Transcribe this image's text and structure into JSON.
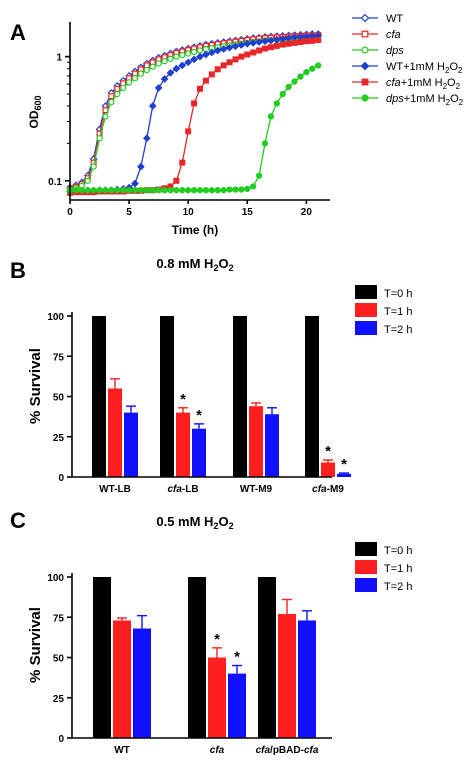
{
  "panels": {
    "A": "A",
    "B": "B",
    "C": "C"
  },
  "chart_data": [
    {
      "type": "line",
      "panel": "A",
      "xlabel": "Time (h)",
      "ylabel": "OD600",
      "ylabel_main": "OD",
      "ylabel_sub": "600",
      "xlim": [
        0,
        22
      ],
      "ylim": [
        0.07,
        1.9
      ],
      "yscale": "log",
      "x_ticks": [
        0,
        5,
        10,
        15,
        20
      ],
      "y_ticks": [
        {
          "value": 0.1,
          "label": "0.1"
        },
        {
          "value": 1,
          "label": "1"
        }
      ],
      "legend_position": "right",
      "series": [
        {
          "name": "WT",
          "name_parts": {
            "pre": "WT",
            "ital": "",
            "post": ""
          },
          "color": "#1f3fd0",
          "marker": "diamond-open",
          "x": [
            0,
            0.5,
            1,
            1.5,
            2,
            2.5,
            3,
            3.5,
            4,
            4.5,
            5,
            5.5,
            6,
            6.5,
            7,
            7.5,
            8,
            8.5,
            9,
            9.5,
            10,
            10.5,
            11,
            11.5,
            12,
            12.5,
            13,
            13.5,
            14,
            14.5,
            15,
            15.5,
            16,
            16.5,
            17,
            17.5,
            18,
            18.5,
            19,
            19.5,
            20,
            20.5,
            21
          ],
          "y": [
            0.088,
            0.092,
            0.097,
            0.11,
            0.15,
            0.26,
            0.4,
            0.51,
            0.58,
            0.64,
            0.7,
            0.76,
            0.82,
            0.88,
            0.93,
            0.98,
            1.02,
            1.06,
            1.1,
            1.13,
            1.16,
            1.19,
            1.22,
            1.25,
            1.27,
            1.29,
            1.31,
            1.33,
            1.35,
            1.37,
            1.39,
            1.41,
            1.42,
            1.44,
            1.45,
            1.46,
            1.47,
            1.48,
            1.49,
            1.5,
            1.51,
            1.52,
            1.52
          ]
        },
        {
          "name": "cfa",
          "name_parts": {
            "pre": "",
            "ital": "cfa",
            "post": ""
          },
          "color": "#e8262a",
          "marker": "square-open",
          "x": [
            0,
            0.5,
            1,
            1.5,
            2,
            2.5,
            3,
            3.5,
            4,
            4.5,
            5,
            5.5,
            6,
            6.5,
            7,
            7.5,
            8,
            8.5,
            9,
            9.5,
            10,
            10.5,
            11,
            11.5,
            12,
            12.5,
            13,
            13.5,
            14,
            14.5,
            15,
            15.5,
            16,
            16.5,
            17,
            17.5,
            18,
            18.5,
            19,
            19.5,
            20,
            20.5,
            21
          ],
          "y": [
            0.086,
            0.089,
            0.094,
            0.105,
            0.14,
            0.24,
            0.37,
            0.48,
            0.55,
            0.61,
            0.67,
            0.73,
            0.79,
            0.85,
            0.9,
            0.95,
            0.99,
            1.03,
            1.07,
            1.1,
            1.13,
            1.16,
            1.19,
            1.22,
            1.24,
            1.26,
            1.28,
            1.3,
            1.32,
            1.34,
            1.36,
            1.38,
            1.4,
            1.41,
            1.42,
            1.43,
            1.44,
            1.45,
            1.46,
            1.47,
            1.48,
            1.48,
            1.49
          ]
        },
        {
          "name": "dps",
          "name_parts": {
            "pre": "",
            "ital": "dps",
            "post": ""
          },
          "color": "#22cc22",
          "marker": "circle-open",
          "x": [
            0,
            0.5,
            1,
            1.5,
            2,
            2.5,
            3,
            3.5,
            4,
            4.5,
            5,
            5.5,
            6,
            6.5,
            7,
            7.5,
            8,
            8.5,
            9,
            9.5,
            10,
            10.5,
            11,
            11.5,
            12,
            12.5,
            13,
            13.5,
            14,
            14.5,
            15,
            15.5,
            16,
            16.5,
            17,
            17.5,
            18,
            18.5,
            19,
            19.5,
            20,
            20.5,
            21
          ],
          "y": [
            0.085,
            0.087,
            0.091,
            0.1,
            0.13,
            0.22,
            0.33,
            0.43,
            0.5,
            0.56,
            0.62,
            0.67,
            0.73,
            0.78,
            0.83,
            0.88,
            0.92,
            0.96,
            1.0,
            1.03,
            1.06,
            1.09,
            1.12,
            1.15,
            1.17,
            1.19,
            1.21,
            1.23,
            1.25,
            1.27,
            1.29,
            1.31,
            1.32,
            1.34,
            1.35,
            1.36,
            1.37,
            1.38,
            1.39,
            1.4,
            1.41,
            1.41,
            1.42
          ]
        },
        {
          "name": "WT+1mM H2O2",
          "name_parts": {
            "pre": "WT",
            "ital": "",
            "post": "+1mM H"
          },
          "color": "#1f3fd0",
          "marker": "diamond",
          "x": [
            0,
            0.5,
            1,
            1.5,
            2,
            2.5,
            3,
            3.5,
            4,
            4.5,
            5,
            5.5,
            6,
            6.5,
            7,
            7.5,
            8,
            8.5,
            9,
            9.5,
            10,
            10.5,
            11,
            11.5,
            12,
            12.5,
            13,
            13.5,
            14,
            14.5,
            15,
            15.5,
            16,
            16.5,
            17,
            17.5,
            18,
            18.5,
            19,
            19.5,
            20,
            20.5,
            21
          ],
          "y": [
            0.082,
            0.083,
            0.083,
            0.083,
            0.083,
            0.084,
            0.084,
            0.084,
            0.085,
            0.086,
            0.088,
            0.095,
            0.13,
            0.22,
            0.4,
            0.56,
            0.66,
            0.74,
            0.8,
            0.85,
            0.9,
            0.95,
            1.0,
            1.04,
            1.08,
            1.12,
            1.15,
            1.18,
            1.21,
            1.24,
            1.27,
            1.29,
            1.31,
            1.33,
            1.35,
            1.37,
            1.39,
            1.41,
            1.43,
            1.44,
            1.45,
            1.46,
            1.47
          ]
        },
        {
          "name": "cfa+1mM H2O2",
          "name_parts": {
            "pre": "",
            "ital": "cfa",
            "post": "+1mM H"
          },
          "color": "#e8262a",
          "marker": "square",
          "x": [
            0,
            0.5,
            1,
            1.5,
            2,
            2.5,
            3,
            3.5,
            4,
            4.5,
            5,
            5.5,
            6,
            6.5,
            7,
            7.5,
            8,
            8.5,
            9,
            9.5,
            10,
            10.5,
            11,
            11.5,
            12,
            12.5,
            13,
            13.5,
            14,
            14.5,
            15,
            15.5,
            16,
            16.5,
            17,
            17.5,
            18,
            18.5,
            19,
            19.5,
            20,
            20.5,
            21
          ],
          "y": [
            0.08,
            0.081,
            0.081,
            0.081,
            0.081,
            0.082,
            0.082,
            0.082,
            0.082,
            0.082,
            0.083,
            0.083,
            0.083,
            0.084,
            0.084,
            0.085,
            0.087,
            0.09,
            0.1,
            0.14,
            0.25,
            0.42,
            0.55,
            0.64,
            0.72,
            0.79,
            0.85,
            0.9,
            0.95,
            1.0,
            1.04,
            1.08,
            1.12,
            1.16,
            1.19,
            1.22,
            1.25,
            1.27,
            1.29,
            1.31,
            1.33,
            1.34,
            1.36
          ]
        },
        {
          "name": "dps+1mM H2O2",
          "name_parts": {
            "pre": "",
            "ital": "dps",
            "post": "+1mM H"
          },
          "color": "#22cc22",
          "marker": "circle",
          "x": [
            0,
            0.5,
            1,
            1.5,
            2,
            2.5,
            3,
            3.5,
            4,
            4.5,
            5,
            5.5,
            6,
            6.5,
            7,
            7.5,
            8,
            8.5,
            9,
            9.5,
            10,
            10.5,
            11,
            11.5,
            12,
            12.5,
            13,
            13.5,
            14,
            14.5,
            15,
            15.5,
            16,
            16.5,
            17,
            17.5,
            18,
            18.5,
            19,
            19.5,
            20,
            20.5,
            21
          ],
          "y": [
            0.083,
            0.084,
            0.084,
            0.084,
            0.084,
            0.084,
            0.084,
            0.084,
            0.084,
            0.084,
            0.084,
            0.084,
            0.084,
            0.084,
            0.084,
            0.084,
            0.084,
            0.084,
            0.084,
            0.084,
            0.084,
            0.084,
            0.084,
            0.084,
            0.084,
            0.084,
            0.084,
            0.085,
            0.085,
            0.085,
            0.086,
            0.09,
            0.11,
            0.2,
            0.33,
            0.42,
            0.5,
            0.57,
            0.63,
            0.69,
            0.75,
            0.8,
            0.85
          ]
        }
      ]
    },
    {
      "type": "bar",
      "panel": "B",
      "title": "0.8 mM H2O2",
      "title_parts": {
        "main": "0.8 mM H",
        "sub1": "2",
        "mid": "O",
        "sub2": "2"
      },
      "ylabel": "% Survival",
      "ylim": [
        0,
        100
      ],
      "y_ticks": [
        0,
        25,
        50,
        75,
        100
      ],
      "legend_position": "right",
      "categories": [
        "WT-LB",
        "cfa-LB",
        "WT-M9",
        "cfa-M9"
      ],
      "category_parts": [
        {
          "ital": "",
          "rest": "WT-LB"
        },
        {
          "ital": "cfa",
          "rest": "-LB"
        },
        {
          "ital": "",
          "rest": "WT-M9"
        },
        {
          "ital": "cfa",
          "rest": "-M9"
        }
      ],
      "series": [
        {
          "name": "T=0 h",
          "color": "#000000",
          "values": [
            100,
            100,
            100,
            100
          ],
          "errors": [
            0,
            0,
            0,
            0
          ],
          "significant": [
            false,
            false,
            false,
            false
          ]
        },
        {
          "name": "T=1 h",
          "color": "#ff1f1f",
          "values": [
            55,
            40,
            44,
            9
          ],
          "errors": [
            6,
            3,
            2,
            1.5
          ],
          "significant": [
            false,
            true,
            false,
            true
          ]
        },
        {
          "name": "T=2 h",
          "color": "#1010ff",
          "values": [
            40,
            30,
            39,
            2
          ],
          "errors": [
            4,
            3,
            4,
            0.5
          ],
          "significant": [
            false,
            true,
            false,
            true
          ]
        }
      ],
      "significance_marker": "*"
    },
    {
      "type": "bar",
      "panel": "C",
      "title": "0.5 mM H2O2",
      "title_parts": {
        "main": "0.5 mM H",
        "sub1": "2",
        "mid": "O",
        "sub2": "2"
      },
      "ylabel": "% Survival",
      "ylim": [
        0,
        100
      ],
      "y_ticks": [
        0,
        25,
        50,
        75,
        100
      ],
      "legend_position": "right",
      "categories": [
        "WT",
        "cfa",
        "cfa/pBAD-cfa"
      ],
      "category_parts": [
        {
          "ital": "",
          "rest": "WT"
        },
        {
          "ital": "cfa",
          "rest": ""
        },
        {
          "ital": "cfa",
          "rest": "/pBAD-",
          "ital2": "cfa"
        }
      ],
      "series": [
        {
          "name": "T=0 h",
          "color": "#000000",
          "values": [
            100,
            100,
            100
          ],
          "errors": [
            0,
            0,
            0
          ],
          "significant": [
            false,
            false,
            false
          ]
        },
        {
          "name": "T=1 h",
          "color": "#ff1f1f",
          "values": [
            73,
            50,
            77
          ],
          "errors": [
            1.5,
            6,
            9
          ],
          "significant": [
            false,
            true,
            false
          ]
        },
        {
          "name": "T=2 h",
          "color": "#1010ff",
          "values": [
            68,
            40,
            73
          ],
          "errors": [
            8,
            5,
            6
          ],
          "significant": [
            false,
            true,
            false
          ]
        }
      ],
      "significance_marker": "*"
    }
  ]
}
